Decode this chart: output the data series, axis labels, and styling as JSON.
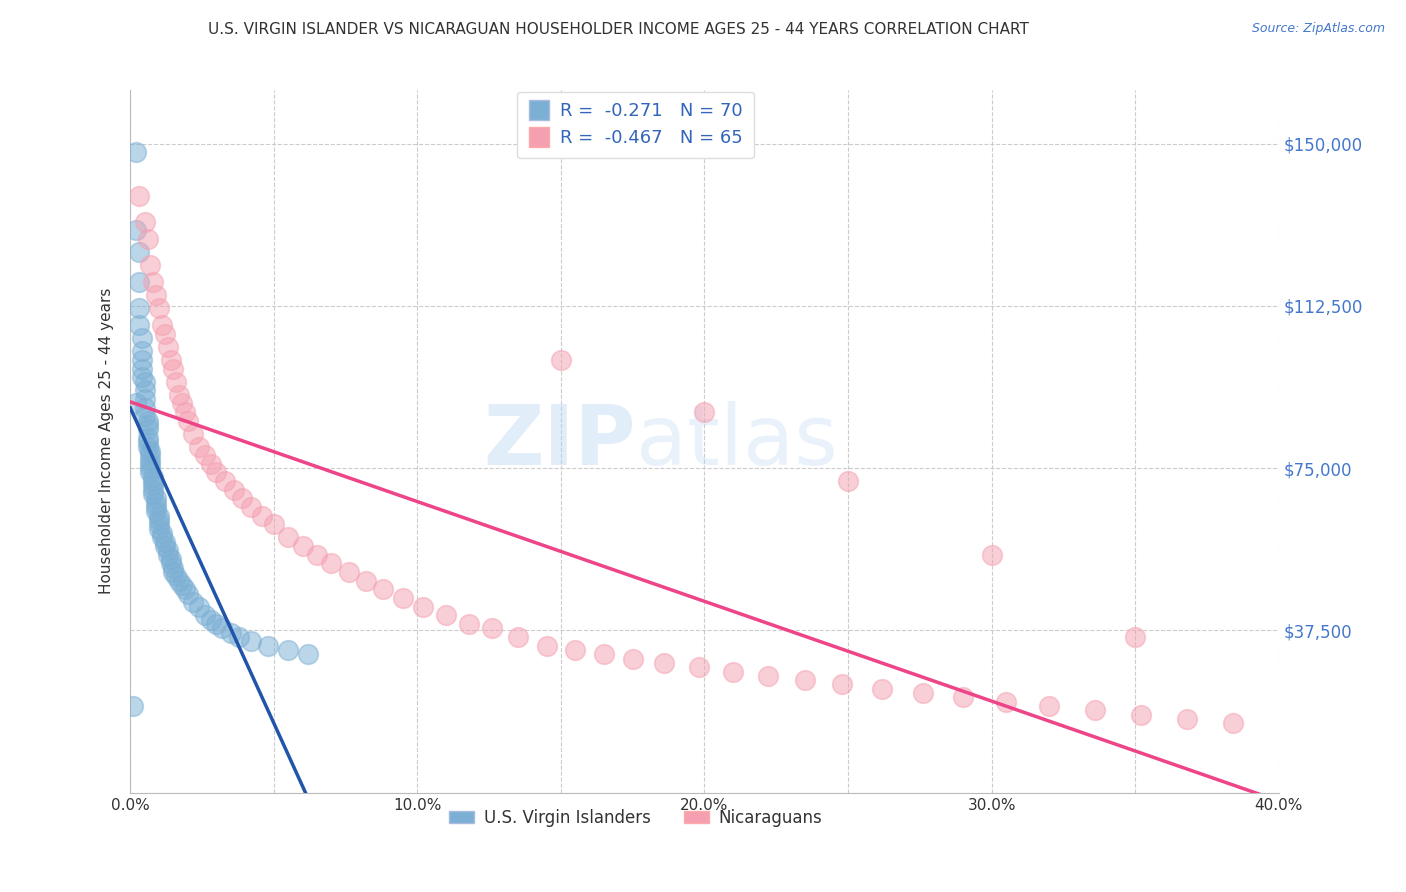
{
  "title": "U.S. VIRGIN ISLANDER VS NICARAGUAN HOUSEHOLDER INCOME AGES 25 - 44 YEARS CORRELATION CHART",
  "source": "Source: ZipAtlas.com",
  "ylabel": "Householder Income Ages 25 - 44 years",
  "xlim": [
    0.0,
    0.4
  ],
  "ylim": [
    0,
    162500
  ],
  "xticks": [
    0.0,
    0.05,
    0.1,
    0.15,
    0.2,
    0.25,
    0.3,
    0.35,
    0.4
  ],
  "xticklabels": [
    "0.0%",
    "",
    "10.0%",
    "",
    "20.0%",
    "",
    "30.0%",
    "",
    "40.0%"
  ],
  "yticks": [
    0,
    37500,
    75000,
    112500,
    150000
  ],
  "yticklabels_right": [
    "",
    "$37,500",
    "$75,000",
    "$112,500",
    "$150,000"
  ],
  "color_blue": "#7BAFD4",
  "color_pink": "#F4A0B0",
  "color_blue_line": "#2255AA",
  "color_pink_line": "#EE4488",
  "color_dashed": "#AABBDD",
  "watermark_zip": "ZIP",
  "watermark_atlas": "atlas",
  "blue_x": [
    0.001,
    0.002,
    0.002,
    0.003,
    0.003,
    0.003,
    0.003,
    0.004,
    0.004,
    0.004,
    0.004,
    0.004,
    0.005,
    0.005,
    0.005,
    0.005,
    0.005,
    0.006,
    0.006,
    0.006,
    0.006,
    0.006,
    0.006,
    0.007,
    0.007,
    0.007,
    0.007,
    0.007,
    0.007,
    0.008,
    0.008,
    0.008,
    0.008,
    0.008,
    0.009,
    0.009,
    0.009,
    0.009,
    0.01,
    0.01,
    0.01,
    0.01,
    0.011,
    0.011,
    0.012,
    0.012,
    0.013,
    0.013,
    0.014,
    0.014,
    0.015,
    0.015,
    0.016,
    0.017,
    0.018,
    0.019,
    0.02,
    0.022,
    0.024,
    0.026,
    0.028,
    0.03,
    0.032,
    0.035,
    0.038,
    0.042,
    0.048,
    0.055,
    0.062,
    0.002
  ],
  "blue_y": [
    20000,
    148000,
    130000,
    125000,
    118000,
    112000,
    108000,
    105000,
    102000,
    100000,
    98000,
    96000,
    95000,
    93000,
    91000,
    89000,
    87000,
    86000,
    85000,
    84000,
    82000,
    81000,
    80000,
    79000,
    78000,
    77000,
    76000,
    75000,
    74000,
    73000,
    72000,
    71000,
    70000,
    69000,
    68000,
    67000,
    66000,
    65000,
    64000,
    63000,
    62000,
    61000,
    60000,
    59000,
    58000,
    57000,
    56000,
    55000,
    54000,
    53000,
    52000,
    51000,
    50000,
    49000,
    48000,
    47000,
    46000,
    44000,
    43000,
    41000,
    40000,
    39000,
    38000,
    37000,
    36000,
    35000,
    34000,
    33000,
    32000,
    90000
  ],
  "pink_x": [
    0.003,
    0.005,
    0.006,
    0.007,
    0.008,
    0.009,
    0.01,
    0.011,
    0.012,
    0.013,
    0.014,
    0.015,
    0.016,
    0.017,
    0.018,
    0.019,
    0.02,
    0.022,
    0.024,
    0.026,
    0.028,
    0.03,
    0.033,
    0.036,
    0.039,
    0.042,
    0.046,
    0.05,
    0.055,
    0.06,
    0.065,
    0.07,
    0.076,
    0.082,
    0.088,
    0.095,
    0.102,
    0.11,
    0.118,
    0.126,
    0.135,
    0.145,
    0.155,
    0.165,
    0.175,
    0.186,
    0.198,
    0.21,
    0.222,
    0.235,
    0.248,
    0.262,
    0.276,
    0.29,
    0.305,
    0.32,
    0.336,
    0.352,
    0.368,
    0.384,
    0.35,
    0.3,
    0.25,
    0.2,
    0.15
  ],
  "pink_y": [
    138000,
    132000,
    128000,
    122000,
    118000,
    115000,
    112000,
    108000,
    106000,
    103000,
    100000,
    98000,
    95000,
    92000,
    90000,
    88000,
    86000,
    83000,
    80000,
    78000,
    76000,
    74000,
    72000,
    70000,
    68000,
    66000,
    64000,
    62000,
    59000,
    57000,
    55000,
    53000,
    51000,
    49000,
    47000,
    45000,
    43000,
    41000,
    39000,
    38000,
    36000,
    34000,
    33000,
    32000,
    31000,
    30000,
    29000,
    28000,
    27000,
    26000,
    25000,
    24000,
    23000,
    22000,
    21000,
    20000,
    19000,
    18000,
    17000,
    16000,
    36000,
    55000,
    72000,
    88000,
    100000
  ]
}
